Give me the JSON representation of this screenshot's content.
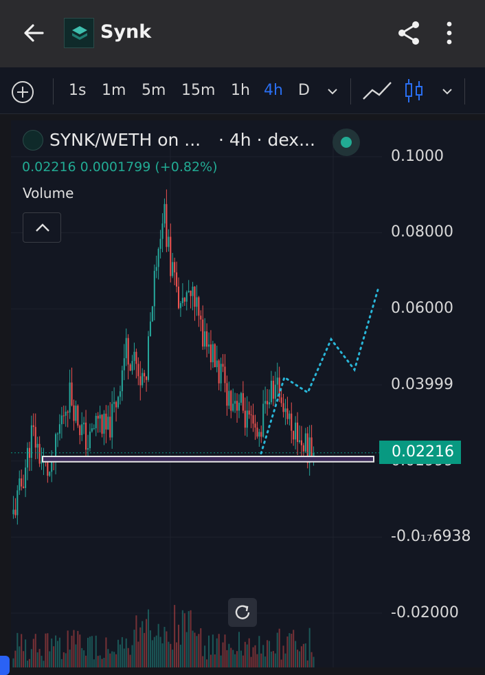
{
  "app": {
    "title": "Synk"
  },
  "toolbar": {
    "timeframes": [
      "1s",
      "1m",
      "5m",
      "15m",
      "1h",
      "4h",
      "D"
    ],
    "active_timeframe": "4h"
  },
  "legend": {
    "pair": "SYNK/WETH on ...",
    "meta": "· 4h · dex...",
    "ohlc": "0.02216  0.0001799 (+0.82%)",
    "volume_label": "Volume"
  },
  "price_axis": {
    "labels": [
      "0.1000",
      "0.08000",
      "0.06000",
      "0.03999",
      "0.01999",
      "-0.0₁₇6938",
      "-0.02000"
    ],
    "last_price": "0.02216"
  },
  "colors": {
    "up": "#26a69a",
    "down": "#ef5350",
    "last_price_tag": "#089981",
    "active": "#2a6ff2",
    "drawing_line": "#29b6d8",
    "status_live": "#22ab94"
  },
  "chart_data": {
    "type": "candlestick",
    "timeframe": "4h",
    "ylim": [
      -0.02,
      0.1
    ],
    "last": 0.02216,
    "close_path": [
      0.006,
      0.015,
      0.028,
      0.02,
      0.016,
      0.03,
      0.038,
      0.03,
      0.024,
      0.032,
      0.027,
      0.036,
      0.05,
      0.045,
      0.04,
      0.07,
      0.086,
      0.068,
      0.06,
      0.064,
      0.055,
      0.049,
      0.043,
      0.037,
      0.036,
      0.03,
      0.025,
      0.036,
      0.04,
      0.034,
      0.028,
      0.024,
      0.022
    ],
    "support_zone": [
      0.0198,
      0.0212
    ],
    "projection_path": [
      0.022,
      0.042,
      0.038,
      0.052,
      0.044,
      0.065
    ]
  }
}
